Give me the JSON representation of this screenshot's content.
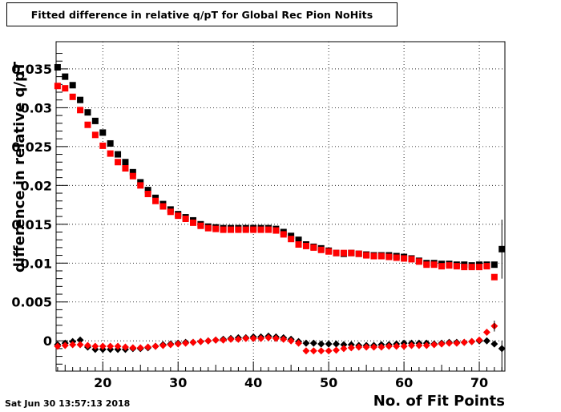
{
  "timestamp": "Sat Jun 30 13:57:13 2018",
  "chart_data": {
    "type": "scatter",
    "title": "Fitted difference in relative q/pT for Global Rec Pion NoHits",
    "xlabel": "No. of Fit Points",
    "ylabel": "difference in relative q/pT",
    "xlim": [
      13.8,
      73.4
    ],
    "ylim": [
      -0.0039,
      0.0385
    ],
    "xticks": [
      20,
      30,
      40,
      50,
      60,
      70
    ],
    "yticks": [
      0,
      0.005,
      0.01,
      0.015,
      0.02,
      0.025,
      0.03,
      0.035
    ],
    "ytick_labels": [
      "0",
      "0.005",
      "0.01",
      "0.015",
      "0.02",
      "0.025",
      "0.03",
      "0.035"
    ],
    "grid": true,
    "series": [
      {
        "marker": "square",
        "color": "#000000",
        "x": [
          14,
          15,
          16,
          17,
          18,
          19,
          20,
          21,
          22,
          23,
          24,
          25,
          26,
          27,
          28,
          29,
          30,
          31,
          32,
          33,
          34,
          35,
          36,
          37,
          38,
          39,
          40,
          41,
          42,
          43,
          44,
          45,
          46,
          47,
          48,
          49,
          50,
          51,
          52,
          53,
          54,
          55,
          56,
          57,
          58,
          59,
          60,
          61,
          62,
          63,
          64,
          65,
          66,
          67,
          68,
          69,
          70,
          71,
          72,
          73
        ],
        "y": [
          0.0352,
          0.034,
          0.0329,
          0.031,
          0.0294,
          0.0283,
          0.0268,
          0.0254,
          0.024,
          0.023,
          0.0217,
          0.0204,
          0.0194,
          0.0184,
          0.0176,
          0.0169,
          0.0163,
          0.0159,
          0.0155,
          0.015,
          0.0147,
          0.0146,
          0.0145,
          0.0145,
          0.0145,
          0.0145,
          0.0145,
          0.0145,
          0.0145,
          0.0144,
          0.014,
          0.0135,
          0.013,
          0.0124,
          0.0121,
          0.0119,
          0.0116,
          0.0113,
          0.0112,
          0.0113,
          0.0112,
          0.0111,
          0.011,
          0.011,
          0.011,
          0.0109,
          0.0108,
          0.0106,
          0.0103,
          0.01,
          0.01,
          0.0099,
          0.0099,
          0.0098,
          0.0098,
          0.0097,
          0.0098,
          0.0098,
          0.0098,
          0.0118
        ]
      },
      {
        "marker": "square",
        "color": "#ff0000",
        "x": [
          14,
          15,
          16,
          17,
          18,
          19,
          20,
          21,
          22,
          23,
          24,
          25,
          26,
          27,
          28,
          29,
          30,
          31,
          32,
          33,
          34,
          35,
          36,
          37,
          38,
          39,
          40,
          41,
          42,
          43,
          44,
          45,
          46,
          47,
          48,
          49,
          50,
          51,
          52,
          53,
          54,
          55,
          56,
          57,
          58,
          59,
          60,
          61,
          62,
          63,
          64,
          65,
          66,
          67,
          68,
          69,
          70,
          71,
          72
        ],
        "y": [
          0.0328,
          0.0325,
          0.0314,
          0.0297,
          0.0278,
          0.0265,
          0.0251,
          0.0241,
          0.023,
          0.0222,
          0.0212,
          0.02,
          0.0189,
          0.018,
          0.0173,
          0.0166,
          0.0161,
          0.0157,
          0.0152,
          0.0148,
          0.0145,
          0.0144,
          0.0143,
          0.0143,
          0.0143,
          0.0143,
          0.0143,
          0.0143,
          0.0143,
          0.0142,
          0.0137,
          0.0131,
          0.0124,
          0.0122,
          0.012,
          0.0117,
          0.0115,
          0.0113,
          0.0113,
          0.0113,
          0.0112,
          0.011,
          0.0109,
          0.0109,
          0.0108,
          0.0107,
          0.0106,
          0.0105,
          0.0102,
          0.0098,
          0.0098,
          0.0096,
          0.0097,
          0.0096,
          0.0095,
          0.0095,
          0.0095,
          0.0096,
          0.0082
        ]
      },
      {
        "marker": "diamond",
        "color": "#000000",
        "x": [
          14,
          15,
          16,
          17,
          18,
          19,
          20,
          21,
          22,
          23,
          24,
          25,
          26,
          27,
          28,
          29,
          30,
          31,
          32,
          33,
          34,
          35,
          36,
          37,
          38,
          39,
          40,
          41,
          42,
          43,
          44,
          45,
          46,
          47,
          48,
          49,
          50,
          51,
          52,
          53,
          54,
          55,
          56,
          57,
          58,
          59,
          60,
          61,
          62,
          63,
          64,
          65,
          66,
          67,
          68,
          69,
          70,
          71,
          72,
          73
        ],
        "y": [
          -0.0005,
          -0.0003,
          -0.0001,
          0.0001,
          -0.0008,
          -0.0011,
          -0.0011,
          -0.0011,
          -0.0011,
          -0.0011,
          -0.001,
          -0.001,
          -0.0009,
          -0.0007,
          -0.0005,
          -0.0004,
          -0.0003,
          -0.0002,
          -0.0002,
          -0.0001,
          0.0,
          0.0001,
          0.0002,
          0.0003,
          0.0004,
          0.0004,
          0.0005,
          0.0005,
          0.0006,
          0.0005,
          0.0004,
          0.0002,
          -0.0001,
          -0.0003,
          -0.0003,
          -0.0004,
          -0.0004,
          -0.0004,
          -0.0005,
          -0.0005,
          -0.0006,
          -0.0006,
          -0.0006,
          -0.0005,
          -0.0005,
          -0.0004,
          -0.0003,
          -0.0003,
          -0.0003,
          -0.0003,
          -0.0004,
          -0.0003,
          -0.0002,
          -0.0002,
          -0.0002,
          -0.0001,
          0.0,
          0.0,
          -0.0004,
          -0.001
        ]
      },
      {
        "marker": "diamond",
        "color": "#ff0000",
        "x": [
          14,
          15,
          16,
          17,
          18,
          19,
          20,
          21,
          22,
          23,
          24,
          25,
          26,
          27,
          28,
          29,
          30,
          31,
          32,
          33,
          34,
          35,
          36,
          37,
          38,
          39,
          40,
          41,
          42,
          43,
          44,
          45,
          46,
          47,
          48,
          49,
          50,
          51,
          52,
          53,
          54,
          55,
          56,
          57,
          58,
          59,
          60,
          61,
          62,
          63,
          64,
          65,
          66,
          67,
          68,
          69,
          70,
          71,
          72
        ],
        "y": [
          -0.0007,
          -0.0006,
          -0.0005,
          -0.0005,
          -0.0006,
          -0.0007,
          -0.0007,
          -0.0007,
          -0.0007,
          -0.0008,
          -0.0009,
          -0.0009,
          -0.0008,
          -0.0007,
          -0.0006,
          -0.0005,
          -0.0004,
          -0.0003,
          -0.0002,
          -0.0001,
          0.0,
          0.0001,
          0.0001,
          0.0002,
          0.0002,
          0.0003,
          0.0003,
          0.0003,
          0.0004,
          0.0003,
          0.0002,
          0.0,
          -0.0003,
          -0.0013,
          -0.0013,
          -0.0013,
          -0.0013,
          -0.0012,
          -0.001,
          -0.0009,
          -0.0008,
          -0.0008,
          -0.0008,
          -0.0008,
          -0.0007,
          -0.0007,
          -0.0007,
          -0.0006,
          -0.0006,
          -0.0006,
          -0.0005,
          -0.0004,
          -0.0003,
          -0.0003,
          -0.0002,
          -0.0001,
          0.0001,
          0.0011,
          0.0019
        ]
      }
    ]
  }
}
